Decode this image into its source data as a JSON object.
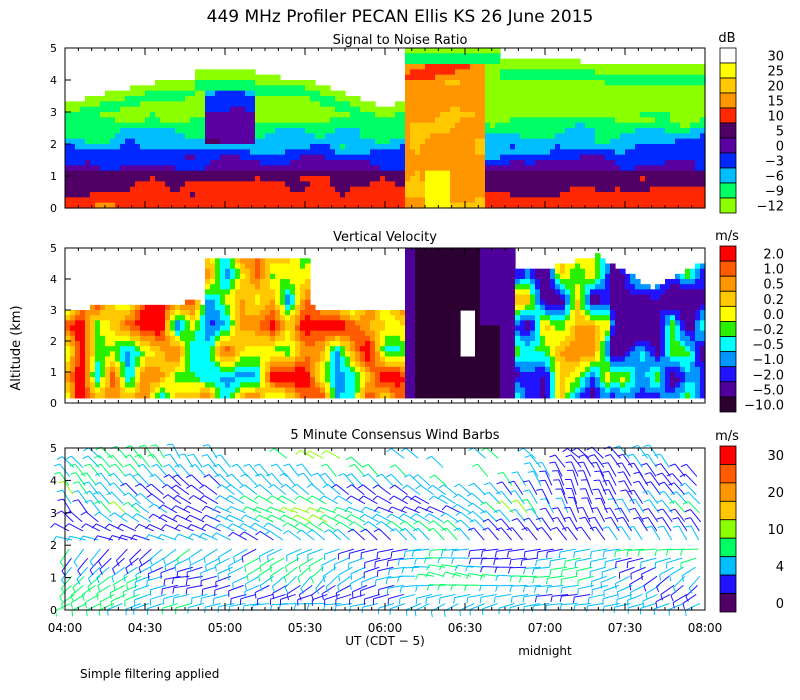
{
  "chart_data": [
    {
      "type": "heatmap",
      "title": "Signal to Noise Ratio",
      "ylabel": "Altitude (km)",
      "ylim": [
        0,
        5
      ],
      "yticks": [
        "0",
        "1",
        "2",
        "3",
        "4",
        "5"
      ],
      "colorbar": {
        "unit": "dB",
        "labels": [
          "30",
          "25",
          "20",
          "15",
          "10",
          "5",
          "0",
          "−3",
          "−6",
          "−9",
          "−12"
        ],
        "colors": [
          "#ffffff",
          "#ffff00",
          "#ffc800",
          "#ff9600",
          "#ff2800",
          "#500064",
          "#5a00a0",
          "#0028ff",
          "#00beff",
          "#00ff64",
          "#8cff00"
        ]
      }
    },
    {
      "type": "heatmap",
      "title": "Vertical Velocity",
      "ylim": [
        0,
        5
      ],
      "yticks": [
        "0",
        "1",
        "2",
        "3",
        "4",
        "5"
      ],
      "colorbar": {
        "unit": "m/s",
        "labels": [
          "2.0",
          "1.0",
          "0.5",
          "0.2",
          "0.0",
          "−0.2",
          "−0.5",
          "−1.0",
          "−2.0",
          "−5.0",
          "−10.0"
        ],
        "colors": [
          "#ff0000",
          "#ff5a00",
          "#ff9600",
          "#ffc800",
          "#ffff00",
          "#28f000",
          "#00ffff",
          "#0096ff",
          "#2014ff",
          "#50009a",
          "#2d0032"
        ]
      }
    },
    {
      "type": "scatter",
      "title": "5 Minute Consensus Wind Barbs",
      "ylim": [
        0,
        5
      ],
      "yticks": [
        "0",
        "1",
        "2",
        "3",
        "4",
        "5"
      ],
      "colorbar": {
        "unit": "m/s",
        "labels": [
          "30",
          "",
          "20",
          "",
          "10",
          "",
          "4",
          "",
          "0"
        ],
        "colors": [
          "#ff0000",
          "#ff5a00",
          "#ff9600",
          "#ffc800",
          "#8cff00",
          "#00ff64",
          "#00beff",
          "#2014ff",
          "#500064"
        ]
      }
    }
  ],
  "title": "449 MHz Profiler PECAN Ellis KS 26 June 2015",
  "ylabel": "Altitude (km)",
  "xlabel": "UT  (CDT − 5)",
  "xticks": [
    "04:00",
    "04:30",
    "05:00",
    "05:30",
    "06:00",
    "06:30",
    "07:00",
    "07:30",
    "08:00"
  ],
  "xannotation": "midnight",
  "footnote": "Simple filtering applied"
}
